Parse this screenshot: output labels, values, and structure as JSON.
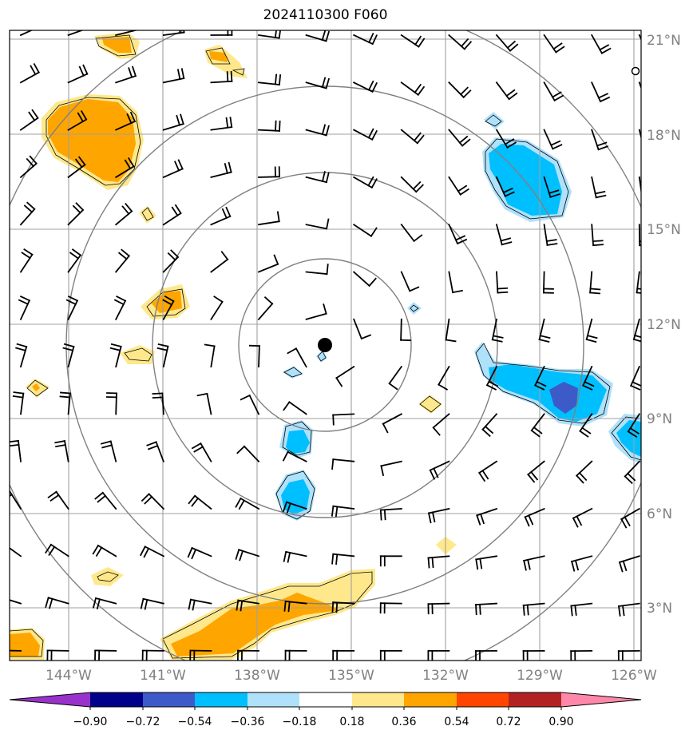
{
  "title": "2024110300 F060",
  "map": {
    "lat_labels": [
      "21°N",
      "18°N",
      "15°N",
      "12°N",
      "9°N",
      "6°N",
      "3°N"
    ],
    "lon_labels": [
      "144°W",
      "141°W",
      "138°W",
      "135°W",
      "132°W",
      "129°W",
      "126°W"
    ],
    "lat_range": [
      1.3,
      21.3
    ],
    "lon_range": [
      -145.5,
      -125.4
    ],
    "storm_center": {
      "lon": -135.0,
      "lat": 11.3
    },
    "range_rings_deg": [
      2.7,
      5.4,
      8.1,
      10.8
    ],
    "grid_color": "#a0a0a0",
    "ring_color": "#808080"
  },
  "colorbar": {
    "ticks": [
      "−0.90",
      "−0.72",
      "−0.54",
      "−0.36",
      "−0.18",
      "0.18",
      "0.36",
      "0.54",
      "0.72",
      "0.90"
    ],
    "colors": [
      "#9932cc",
      "#00008b",
      "#3c5ac8",
      "#00bfff",
      "#afe1fa",
      "#ffffff",
      "#ffe88c",
      "#ffa500",
      "#ff4500",
      "#b22222",
      "#ff88aa"
    ]
  },
  "fill_colors": {
    "light_yellow": "#ffe88c",
    "orange": "#ffa500",
    "light_blue": "#afe1fa",
    "blue": "#00bfff",
    "dark_blue": "#3c5ac8"
  }
}
